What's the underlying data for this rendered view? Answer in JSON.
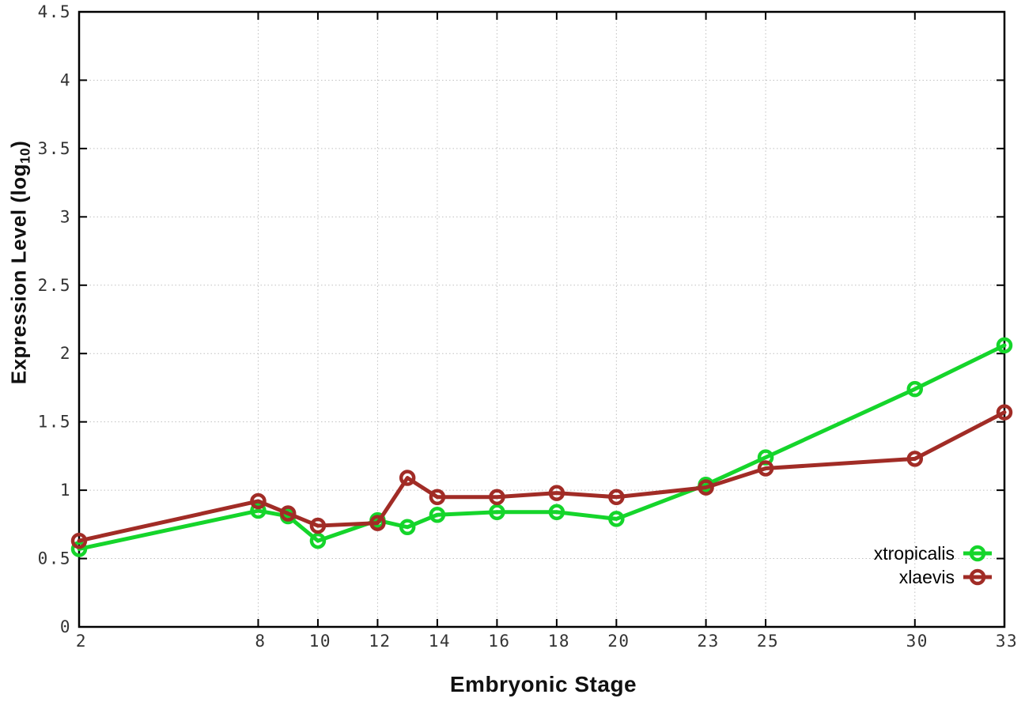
{
  "chart_data": {
    "type": "line",
    "title": "",
    "xlabel": "Embryonic Stage",
    "ylabel": "Expression Level (log10)",
    "ylabel_parts": {
      "main": "Expression Level (log",
      "sub": "10",
      "end": ")"
    },
    "xlim": [
      2,
      33
    ],
    "ylim": [
      0,
      4.5
    ],
    "x_ticks": [
      2,
      8,
      10,
      12,
      14,
      16,
      18,
      20,
      23,
      25,
      30,
      33
    ],
    "y_ticks": [
      0,
      0.5,
      1,
      1.5,
      2,
      2.5,
      3,
      3.5,
      4,
      4.5
    ],
    "grid": "dotted",
    "legend_position": "inside-bottom-right",
    "x": [
      2,
      8,
      9,
      10,
      12,
      13,
      14,
      16,
      18,
      20,
      23,
      25,
      30,
      33
    ],
    "series": [
      {
        "name": "xtropicalis",
        "color": "#15d52b",
        "values": [
          0.57,
          0.85,
          0.81,
          0.63,
          0.78,
          0.73,
          0.82,
          0.84,
          0.84,
          0.79,
          1.04,
          1.24,
          1.74,
          2.06
        ]
      },
      {
        "name": "xlaevis",
        "color": "#a12c26",
        "values": [
          0.63,
          0.92,
          0.83,
          0.74,
          0.76,
          1.09,
          0.95,
          0.95,
          0.98,
          0.95,
          1.02,
          1.16,
          1.23,
          1.57
        ]
      }
    ],
    "style": {
      "background": "#ffffff",
      "axis_color": "#000000",
      "grid_color": "#c0c0c0",
      "tick_label_color": "#333333",
      "axis_title_color": "#111111",
      "legend_text_color": "#000000"
    }
  }
}
